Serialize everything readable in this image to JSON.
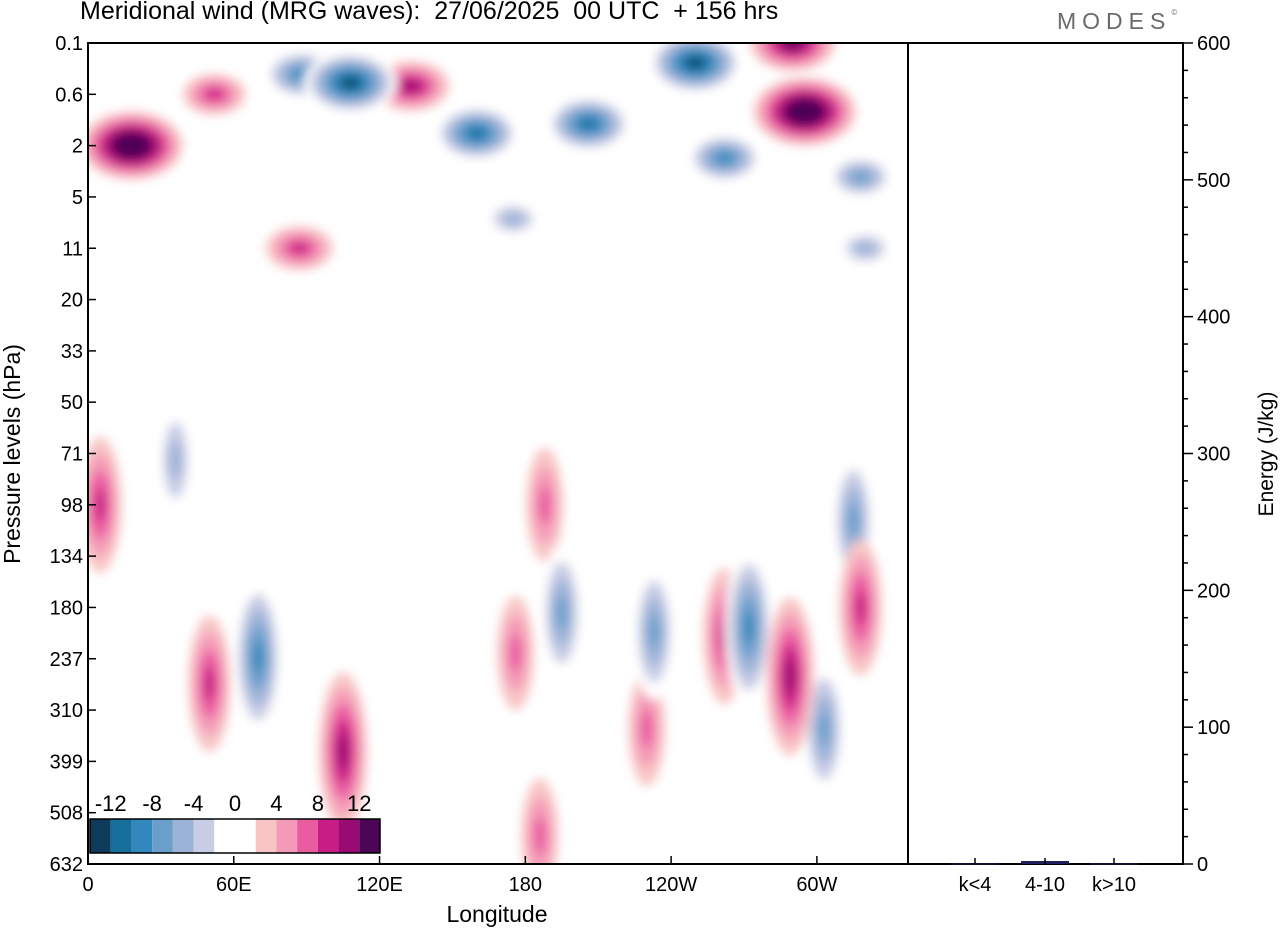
{
  "header": {
    "title": "Meridional wind (MRG waves):  27/06/2025  00 UTC  + 156 hrs",
    "logo": "MODES",
    "logo_mark": "©"
  },
  "chart_data": [
    {
      "type": "heatmap",
      "variable": "Meridional wind (MRG waves)",
      "xlabel": "Longitude",
      "ylabel": "Pressure levels (hPa)",
      "x_ticks": [
        "0",
        "60E",
        "120E",
        "180",
        "120W",
        "60W"
      ],
      "x_tick_degrees_east": [
        0,
        60,
        120,
        180,
        240,
        300
      ],
      "xlim_degrees_east": [
        0,
        337.5
      ],
      "y_ticks": [
        "0.1",
        "0.6",
        "2",
        "5",
        "11",
        "20",
        "33",
        "50",
        "71",
        "98",
        "134",
        "180",
        "237",
        "310",
        "399",
        "508",
        "632"
      ],
      "y_direction": "pressure increases downward",
      "colorbar": {
        "labels": [
          "-12",
          "-8",
          "-4",
          "0",
          "4",
          "8",
          "12"
        ],
        "levels": [
          -14,
          -12,
          -10,
          -8,
          -6,
          -4,
          -2,
          2,
          4,
          6,
          8,
          10,
          12,
          14
        ],
        "colors": [
          "#0d3b59",
          "#166e9c",
          "#3288bd",
          "#6a9fcc",
          "#9cb3d8",
          "#c8cce4",
          "#ffffff",
          "#ffffff",
          "#f8c5c5",
          "#f49ab8",
          "#ea5ca0",
          "#c71d84",
          "#990a72",
          "#4d0657"
        ],
        "placement": "bottom-left inside plot"
      },
      "features": [
        {
          "lon": 18,
          "p": 2,
          "value": 16
        },
        {
          "lon": 52,
          "p": 0.6,
          "value": 7
        },
        {
          "lon": 108,
          "p": 0.4,
          "value": -14
        },
        {
          "lon": 88,
          "p": 0.3,
          "value": -10
        },
        {
          "lon": 133,
          "p": 0.45,
          "value": 10
        },
        {
          "lon": 160,
          "p": 1.5,
          "value": -12
        },
        {
          "lon": 206,
          "p": 1.2,
          "value": -12
        },
        {
          "lon": 250,
          "p": 0.2,
          "value": -14
        },
        {
          "lon": 290,
          "p": 0.1,
          "value": 12
        },
        {
          "lon": 295,
          "p": 0.9,
          "value": 16
        },
        {
          "lon": 262,
          "p": 2.5,
          "value": -10
        },
        {
          "lon": 318,
          "p": 3.5,
          "value": -8
        },
        {
          "lon": 320,
          "p": 11,
          "value": -6
        },
        {
          "lon": 87,
          "p": 11,
          "value": 8
        },
        {
          "lon": 175,
          "p": 7,
          "value": -6
        },
        {
          "lon": 5,
          "p": 98,
          "value": 8
        },
        {
          "lon": 36,
          "p": 74,
          "value": -6
        },
        {
          "lon": 70,
          "p": 235,
          "value": -10
        },
        {
          "lon": 50,
          "p": 270,
          "value": 8
        },
        {
          "lon": 105,
          "p": 380,
          "value": 10
        },
        {
          "lon": 176,
          "p": 230,
          "value": 6
        },
        {
          "lon": 188,
          "p": 98,
          "value": 6
        },
        {
          "lon": 195,
          "p": 185,
          "value": -8
        },
        {
          "lon": 233,
          "p": 205,
          "value": -8
        },
        {
          "lon": 262,
          "p": 210,
          "value": 8
        },
        {
          "lon": 272,
          "p": 200,
          "value": -10
        },
        {
          "lon": 289,
          "p": 260,
          "value": 10
        },
        {
          "lon": 303,
          "p": 340,
          "value": -8
        },
        {
          "lon": 315,
          "p": 108,
          "value": -8
        },
        {
          "lon": 318,
          "p": 180,
          "value": 8
        },
        {
          "lon": 230,
          "p": 340,
          "value": 6
        },
        {
          "lon": 186,
          "p": 560,
          "value": 6
        }
      ]
    },
    {
      "type": "bar",
      "ylabel": "Energy (J/kg)",
      "categories": [
        "k<4",
        "4-10",
        "k>10"
      ],
      "values": [
        0.4,
        2.2,
        0.4
      ],
      "ylim": [
        0,
        600
      ],
      "y_ticks": [
        0,
        100,
        200,
        300,
        400,
        500,
        600
      ],
      "bar_color": "#1e1e5a"
    }
  ]
}
